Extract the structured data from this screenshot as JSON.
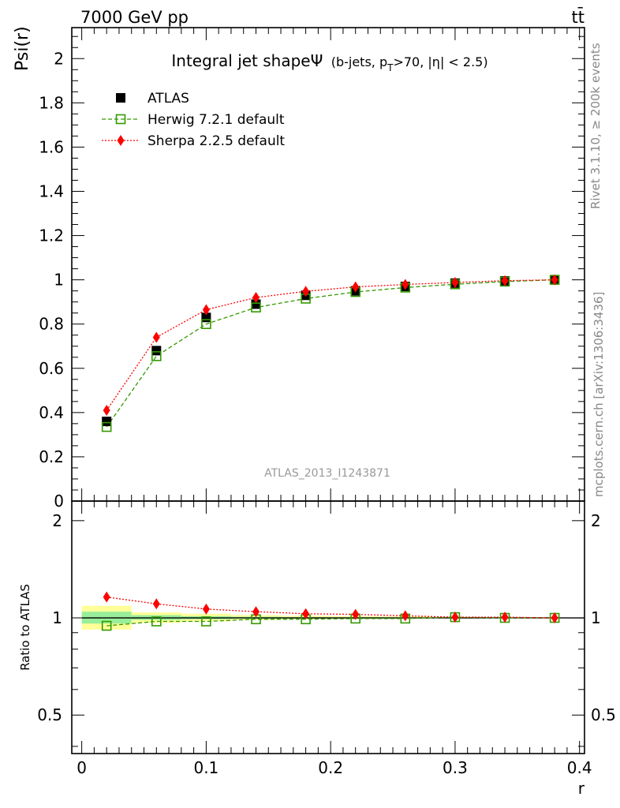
{
  "header": {
    "energy_label": "7000 GeV pp",
    "process_label": "tt̄"
  },
  "side_texts": {
    "rivet": "Rivet 3.1.10, ≥ 200k events",
    "mcplots": "mcplots.cern.ch [arXiv:1306:3436]"
  },
  "colors": {
    "atlas": "#000000",
    "herwig": "#339900",
    "sherpa": "#ff0000",
    "band_stat": "#99ee99",
    "band_syst": "#ffff99",
    "side_text": "#888888"
  },
  "chart_data": [
    {
      "panel": "main",
      "type": "scatter",
      "title_main": "Integral jet shapeΨ",
      "title_sub": "(b-jets, p",
      "title_sub_index": "T",
      "title_tail": ">70, |η| < 2.5)",
      "ylabel": "Psi(r)",
      "watermark": "ATLAS_2013_I1243871",
      "xlim": [
        -0.008,
        0.404
      ],
      "ylim": [
        0,
        2.14
      ],
      "yticks": [
        0,
        0.2,
        0.4,
        0.6,
        0.8,
        1,
        1.2,
        1.4,
        1.6,
        1.8,
        2
      ],
      "yticklabels": [
        "0",
        "0.2",
        "0.4",
        "0.6",
        "0.8",
        "1",
        "1.2",
        "1.4",
        "1.6",
        "1.8",
        "2"
      ],
      "legend_position": "top-left",
      "x": [
        0.02,
        0.06,
        0.1,
        0.14,
        0.18,
        0.22,
        0.26,
        0.3,
        0.34,
        0.38
      ],
      "series": [
        {
          "name": "ATLAS",
          "style": "data",
          "values": [
            0.36,
            0.68,
            0.83,
            0.89,
            0.93,
            0.95,
            0.97,
            0.985,
            0.995,
            1.0
          ]
        },
        {
          "name": "Herwig 7.2.1 default",
          "style": "herwig",
          "values": [
            0.335,
            0.655,
            0.8,
            0.875,
            0.915,
            0.945,
            0.965,
            0.98,
            0.992,
            1.0
          ]
        },
        {
          "name": "Sherpa 2.2.5 default",
          "style": "sherpa",
          "values": [
            0.41,
            0.74,
            0.865,
            0.92,
            0.948,
            0.968,
            0.979,
            0.988,
            0.996,
            1.0
          ]
        }
      ]
    },
    {
      "panel": "ratio",
      "type": "line",
      "ylabel": "Ratio to ATLAS",
      "xlabel": "r",
      "xlim": [
        -0.008,
        0.404
      ],
      "ylim": [
        0.38,
        2.3
      ],
      "yscale": "log",
      "yticklabels": [
        "0.5",
        "1",
        "2"
      ],
      "xticklabels": [
        "0",
        "0.1",
        "0.2",
        "0.3",
        "0.4"
      ],
      "x": [
        0.02,
        0.06,
        0.1,
        0.14,
        0.18,
        0.22,
        0.26,
        0.3,
        0.34,
        0.38
      ],
      "bands": {
        "edges": [
          0.0,
          0.04,
          0.08,
          0.12,
          0.16,
          0.2,
          0.24,
          0.28,
          0.32,
          0.36,
          0.4
        ],
        "syst_lo": [
          0.92,
          0.965,
          0.975,
          0.985,
          0.99,
          0.993,
          0.995,
          0.997,
          0.998,
          1.0
        ],
        "syst_hi": [
          1.09,
          1.04,
          1.03,
          1.02,
          1.015,
          1.012,
          1.01,
          1.005,
          1.003,
          1.0
        ],
        "stat_lo": [
          0.96,
          0.985,
          0.99,
          0.993,
          0.995,
          0.996,
          0.997,
          0.998,
          0.999,
          1.0
        ],
        "stat_hi": [
          1.045,
          1.02,
          1.012,
          1.008,
          1.006,
          1.004,
          1.003,
          1.002,
          1.001,
          1.0
        ]
      },
      "series": [
        {
          "name": "Herwig 7.2.1 default",
          "style": "herwig",
          "values": [
            0.945,
            0.975,
            0.975,
            0.99,
            0.99,
            0.995,
            0.995,
            1.005,
            1.0,
            1.0
          ]
        },
        {
          "name": "Sherpa 2.2.5 default",
          "style": "sherpa",
          "values": [
            1.16,
            1.105,
            1.065,
            1.045,
            1.03,
            1.025,
            1.015,
            1.005,
            1.005,
            1.0
          ]
        }
      ]
    }
  ]
}
